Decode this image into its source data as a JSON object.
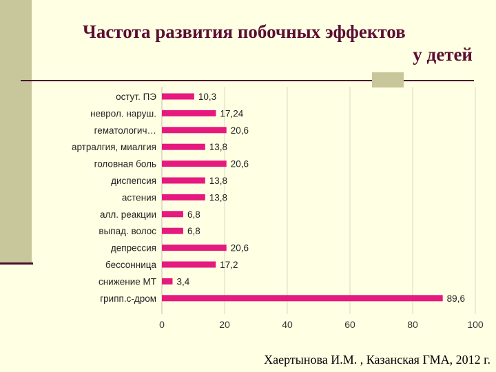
{
  "title": {
    "line1": "Частота развития побочных эффектов",
    "line2": "у детей"
  },
  "credit": "Хаертынова И.М. , Казанская ГМА, 2012 г.",
  "colors": {
    "bar": "#E6197E",
    "title": "#5A0F33",
    "background": "#FFFFE3",
    "accent": "#C7C79B"
  },
  "chart_data": {
    "type": "bar",
    "orientation": "horizontal",
    "categories": [
      "остут. ПЭ",
      "неврол. наруш.",
      "гематологич…",
      "артралгия, миалгия",
      "головная боль",
      "диспепсия",
      "астения",
      "алл. реакции",
      "выпад. волос",
      "депрессия",
      "бессонница",
      "снижение МТ",
      "грипп.с-дром"
    ],
    "values": [
      10.3,
      17.24,
      20.6,
      13.8,
      20.6,
      13.8,
      13.8,
      6.8,
      6.8,
      20.6,
      17.2,
      3.4,
      89.6
    ],
    "value_labels": [
      "10,3",
      "17,24",
      "20,6",
      "13,8",
      "20,6",
      "13,8",
      "13,8",
      "6,8",
      "6,8",
      "20,6",
      "17,2",
      "3,4",
      "89,6"
    ],
    "xlim": [
      0,
      100
    ],
    "xticks": [
      0,
      20,
      40,
      60,
      80,
      100
    ],
    "grid": true,
    "legend": "none",
    "title": "",
    "xlabel": "",
    "ylabel": ""
  }
}
